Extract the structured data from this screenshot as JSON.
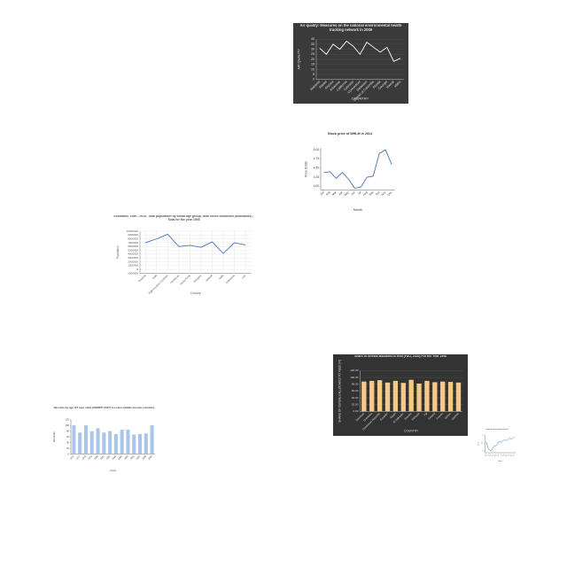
{
  "chart_data": [
    {
      "type": "line",
      "title": "Air quality: Measures on the national environmental health tracking network in 2009",
      "x_label": "COUNTRY",
      "y_label": "AIR QUALITY",
      "categories": [
        "Alabama",
        "Alaska",
        "Arizona",
        "Arkansas",
        "California",
        "Colorado",
        "Connecticut",
        "Delaware",
        "District of Columbia",
        "Florida",
        "Georgia",
        "Hawaii",
        "Idaho"
      ],
      "values": [
        31,
        25,
        35,
        30,
        38,
        33,
        25,
        37,
        32,
        27,
        32,
        18,
        21
      ],
      "ylim": [
        0,
        40
      ],
      "yticks": [
        0,
        5,
        10,
        15,
        20,
        25,
        30,
        35,
        40
      ],
      "color": "#ffffff",
      "background": "#3a3a3a",
      "text_color": "#e0e0e0",
      "grid_color": "#555555",
      "grid": true
    },
    {
      "type": "line",
      "title": "Stock price of WHLM in 2014",
      "x_label": "Month",
      "y_label": "Price (USD)",
      "categories": [
        "Jan",
        "Feb",
        "Mar",
        "Apr",
        "May",
        "Jun",
        "Jul",
        "Aug",
        "Sep",
        "Oct",
        "Nov",
        "Dec"
      ],
      "values": [
        4.38,
        4.4,
        4.22,
        4.38,
        4.2,
        3.95,
        3.98,
        4.25,
        4.28,
        4.9,
        5.0,
        4.6
      ],
      "ylim": [
        3.9,
        5.05
      ],
      "yticks": [
        {
          "value": 4,
          "label": "4.00"
        },
        {
          "value": 4.25,
          "label": "4.25"
        },
        {
          "value": 4.5,
          "label": "4.50"
        },
        {
          "value": 4.75,
          "label": "4.75"
        },
        {
          "value": 5,
          "label": "5.00"
        }
      ],
      "color": "#4c72b0",
      "background": "#ffffff",
      "text_color": "#333333",
      "grid_color": "#dddddd",
      "grid": false
    },
    {
      "type": "line",
      "title": "Estimates, 1950 - 2020: Total population by broad age group, both sexes combined (thousands) - Total for the year 1995",
      "x_label": "Country",
      "y_label": "Population",
      "categories": [
        "Guyana",
        "Haiti",
        "High-income countries",
        "Honduras",
        "Hong Kong",
        "Hungary",
        "Iceland",
        "India",
        "Indonesia",
        "Iran"
      ],
      "values": [
        7000000,
        8000000,
        9200000,
        6000000,
        6300000,
        5800000,
        7200000,
        4200000,
        7000000,
        6400000
      ],
      "ylim": [
        -1000000,
        10000000
      ],
      "yticks": [
        -1000000,
        0,
        1000000,
        2000000,
        3000000,
        4000000,
        5000000,
        6000000,
        7000000,
        8000000,
        9000000,
        10000000
      ],
      "color": "#4472c4",
      "background": "#ffffff",
      "text_color": "#555555",
      "grid_color": "#e2e2e2",
      "grid": true
    },
    {
      "type": "bar",
      "title": "Share of cereals allocated to feed (FAO, 2020) For the Year 1998",
      "x_label": "COUNTRY",
      "y_label": "SHARE OF CEREALS ALLOCATED TO FEED (%)",
      "categories": [
        "Denmark",
        "Dominica",
        "Dominican Republic",
        "Ecuador",
        "Egypt",
        "El Salvador",
        "Estonia",
        "Ethiopia",
        "Fiji",
        "Finland",
        "France",
        "Gabon",
        "Gambia"
      ],
      "values": [
        88,
        90,
        92,
        85,
        90,
        84,
        93,
        82,
        90,
        86,
        88,
        87,
        85
      ],
      "ylim": [
        0,
        120
      ],
      "yticks": [
        {
          "value": 0,
          "label": "0.00"
        },
        {
          "value": 20,
          "label": "20.00"
        },
        {
          "value": 40,
          "label": "40.00"
        },
        {
          "value": 60,
          "label": "60.00"
        },
        {
          "value": 80,
          "label": "80.00"
        },
        {
          "value": 100,
          "label": "100.00"
        },
        {
          "value": 120,
          "label": "120.00"
        }
      ],
      "color": "#f5c98a",
      "background": "#333333",
      "text_color": "#dddddd",
      "grid_color": "#555555",
      "grid": true
    },
    {
      "type": "bar",
      "title": "Net ratio by age (15 year olds) (UNWPP, 2017) in Lower-middle-income countries",
      "x_label": "Years",
      "y_label": "Net Ratio",
      "categories": [
        "1976",
        "1977",
        "1978",
        "1979",
        "1980",
        "1981",
        "1982",
        "1983",
        "1984",
        "1985",
        "1986",
        "1987",
        "1988",
        "1989"
      ],
      "values": [
        100,
        75,
        100,
        80,
        90,
        75,
        80,
        70,
        85,
        85,
        68,
        70,
        72,
        100
      ],
      "ylim": [
        0,
        120
      ],
      "yticks": [
        0,
        20,
        40,
        60,
        80,
        100,
        120
      ],
      "color": "#a9c6e8",
      "background": "#ffffff",
      "text_color": "#444444",
      "grid_color": "#e5e5e5",
      "grid": false
    },
    {
      "type": "line",
      "title": "Stock price of WHLM in 2015",
      "x_label": "Month",
      "y_label": "Price",
      "categories": [
        "Jan",
        "Feb",
        "Mar",
        "Apr",
        "May",
        "Jun",
        "Jul",
        "Aug",
        "Sep",
        "Oct",
        "Nov",
        "Dec"
      ],
      "values": [
        4.6,
        4.1,
        4.0,
        4.3,
        4.35,
        4.6,
        4.55,
        4.7,
        4.65,
        4.8,
        4.75,
        4.9
      ],
      "ylim": [
        3.9,
        5.0
      ],
      "yticks": [
        4,
        4.5,
        5
      ],
      "color": "#4c72b0",
      "background": "#ffffff",
      "text_color": "#555555",
      "grid_color": "#dddddd",
      "grid": false
    }
  ]
}
